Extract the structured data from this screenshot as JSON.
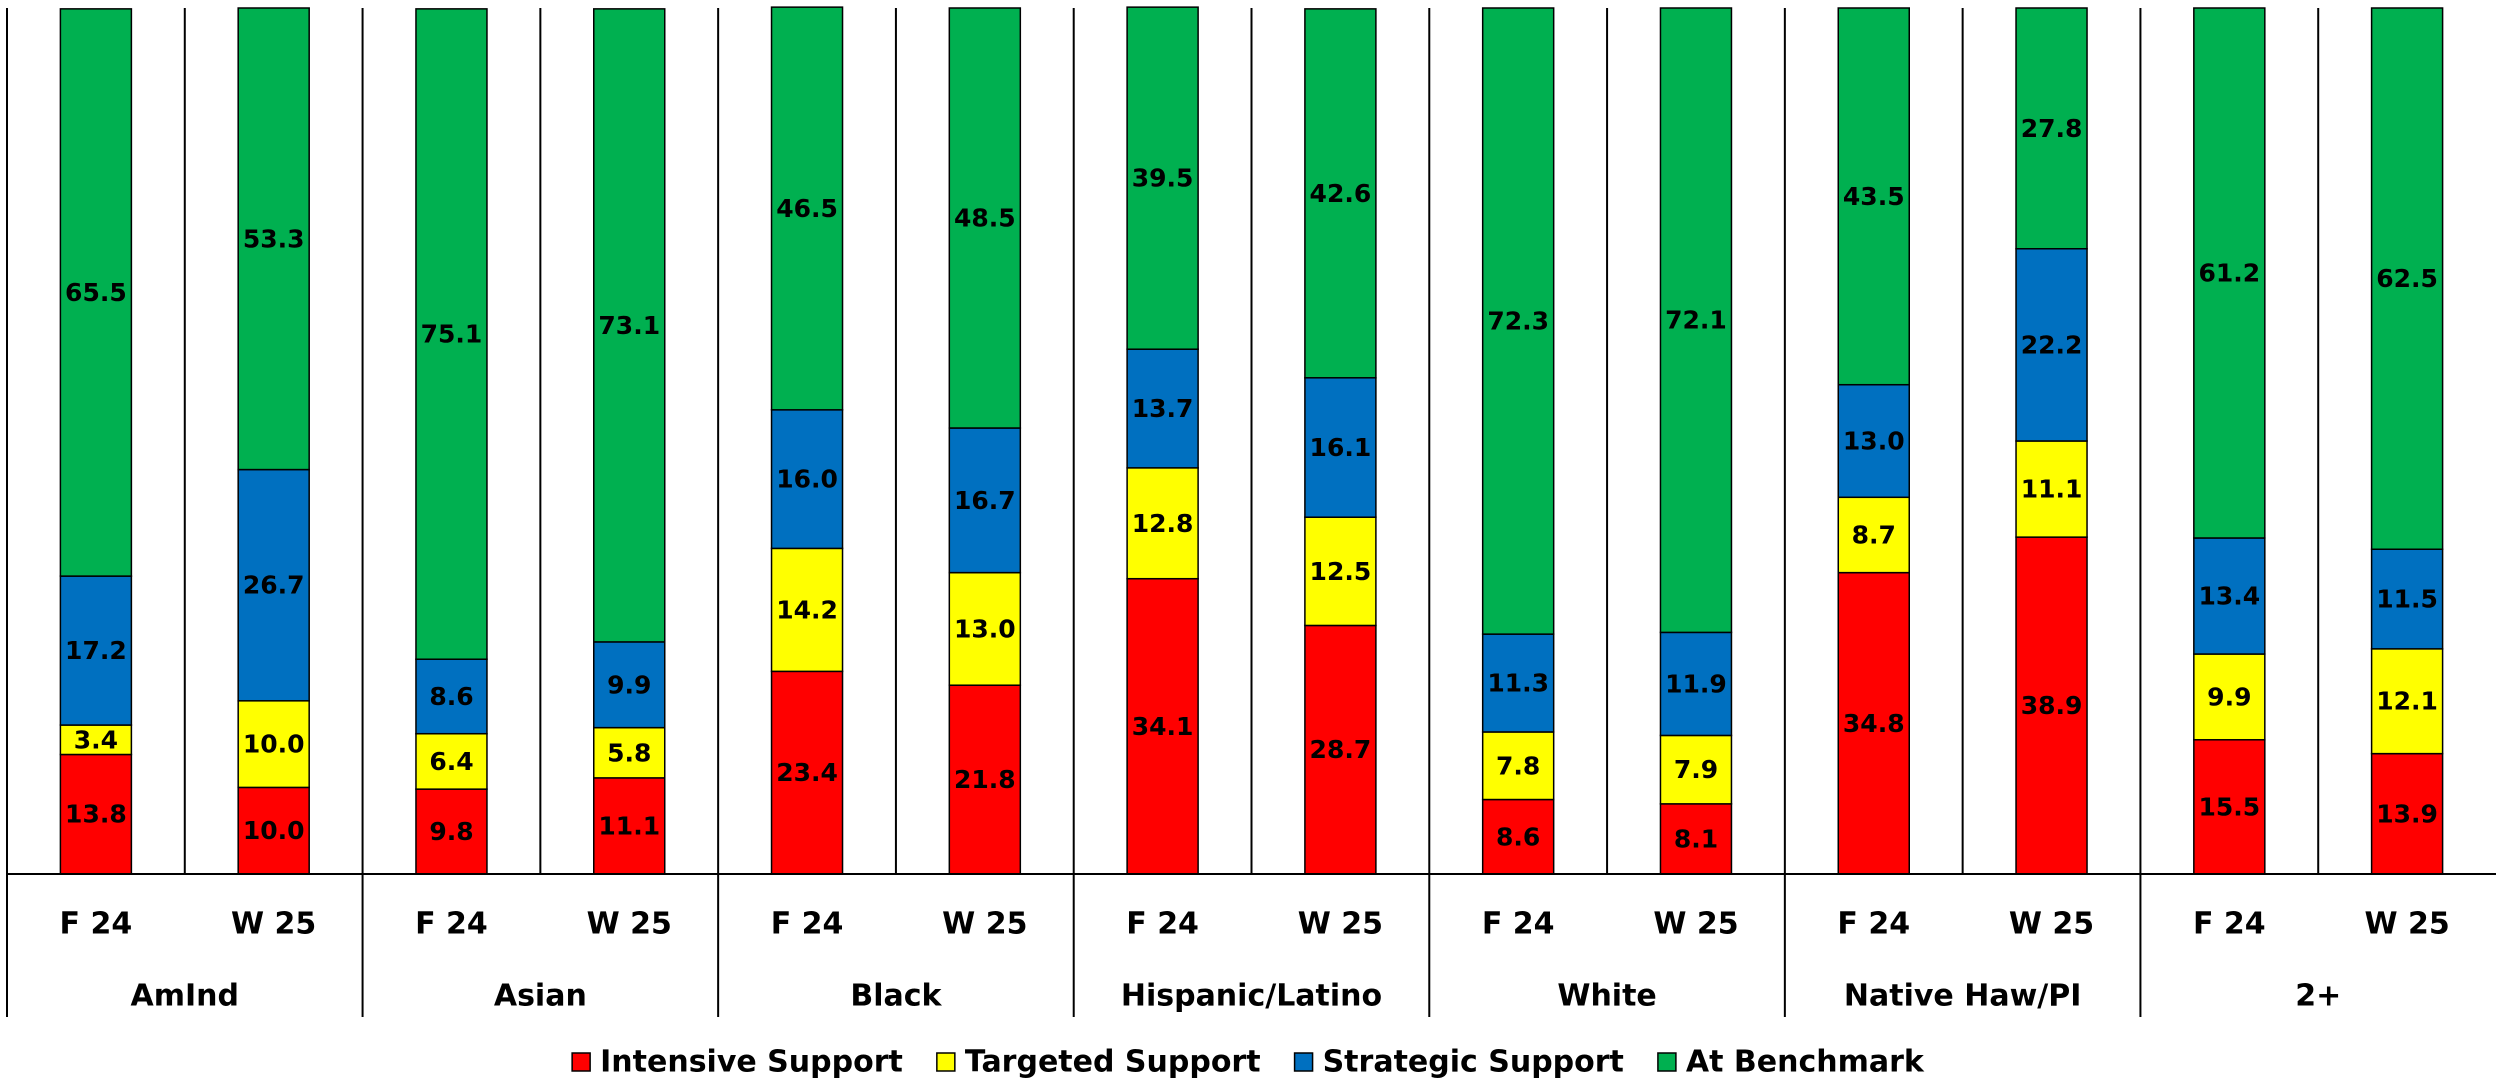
{
  "chart_data": {
    "type": "bar",
    "stacked": true,
    "percent_stacked": true,
    "ylim": [
      0,
      100
    ],
    "grid": false,
    "legend_position": "bottom",
    "groups": [
      {
        "name": "AmInd",
        "categories": [
          "F 24",
          "W 25"
        ]
      },
      {
        "name": "Asian",
        "categories": [
          "F 24",
          "W 25"
        ]
      },
      {
        "name": "Black",
        "categories": [
          "F 24",
          "W 25"
        ]
      },
      {
        "name": "Hispanic/Latino",
        "categories": [
          "F 24",
          "W 25"
        ]
      },
      {
        "name": "White",
        "categories": [
          "F 24",
          "W 25"
        ]
      },
      {
        "name": "Native Haw/PI",
        "categories": [
          "F 24",
          "W 25"
        ]
      },
      {
        "name": "2+",
        "categories": [
          "F 24",
          "W 25"
        ]
      }
    ],
    "series": [
      {
        "name": "Intensive Support",
        "color": "#FF0000",
        "values": [
          13.8,
          10.0,
          9.8,
          11.1,
          23.4,
          21.8,
          34.1,
          28.7,
          8.6,
          8.1,
          34.8,
          38.9,
          15.5,
          13.9
        ]
      },
      {
        "name": "Targeted Support",
        "color": "#FFFF00",
        "values": [
          3.4,
          10.0,
          6.4,
          5.8,
          14.2,
          13.0,
          12.8,
          12.5,
          7.8,
          7.9,
          8.7,
          11.1,
          9.9,
          12.1
        ]
      },
      {
        "name": "Strategic Support",
        "color": "#0070C0",
        "values": [
          17.2,
          26.7,
          8.6,
          9.9,
          16.0,
          16.7,
          13.7,
          16.1,
          11.3,
          11.9,
          13.0,
          22.2,
          13.4,
          11.5
        ]
      },
      {
        "name": "At Benchmark",
        "color": "#00B050",
        "values": [
          65.5,
          53.3,
          75.1,
          73.1,
          46.5,
          48.5,
          39.5,
          42.6,
          72.3,
          72.1,
          43.5,
          27.8,
          61.2,
          62.5
        ]
      }
    ]
  }
}
